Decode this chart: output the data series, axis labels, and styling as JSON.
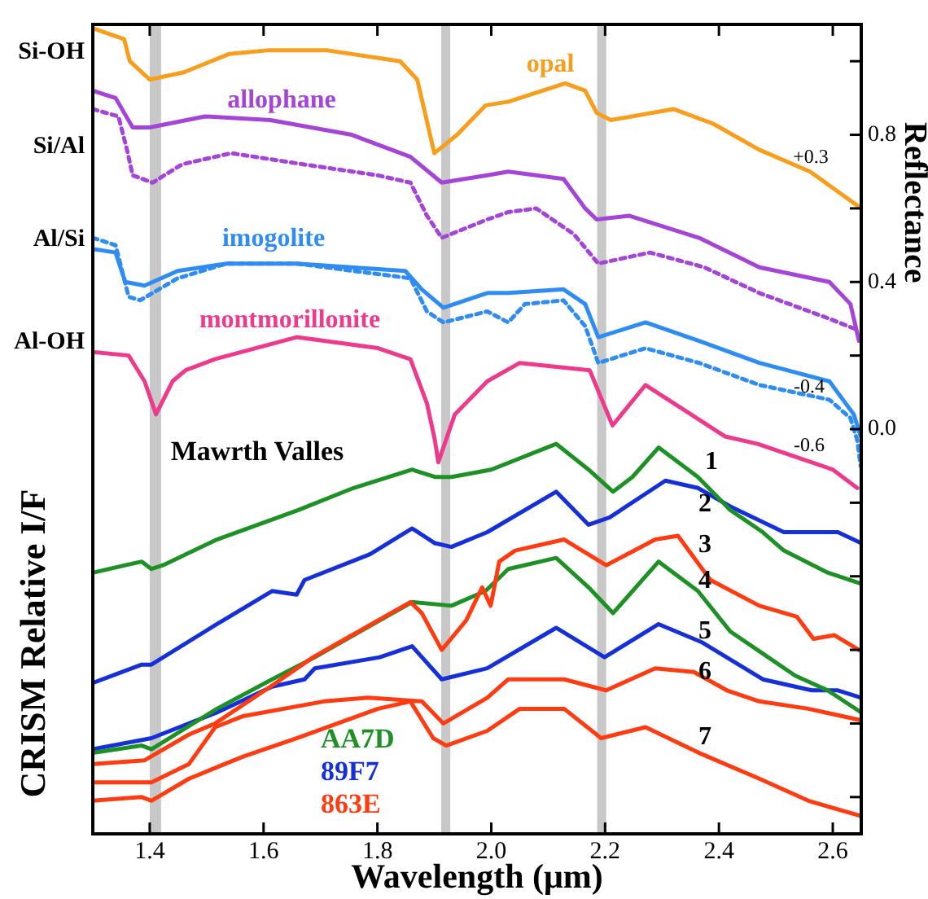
{
  "chart_data": {
    "type": "line",
    "xlabel": "Wavelength (μm)",
    "ylabel": "Reflectance",
    "xlim": [
      1.3,
      2.65
    ],
    "xticks": [
      1.4,
      1.6,
      1.8,
      {
        "value": 2,
        "label": "2.0"
      },
      2.2,
      2.4,
      2.6
    ],
    "ylim": [
      -1.1,
      1.1
    ],
    "yticks": [
      {
        "value": -1,
        "label": null
      },
      {
        "value": -0.8,
        "label": null
      },
      {
        "value": -0.6,
        "label": null
      },
      {
        "value": -0.4,
        "label": null
      },
      {
        "value": -0.2,
        "label": null
      },
      {
        "value": 0,
        "label": "0.0"
      },
      {
        "value": 0.2,
        "label": null
      },
      0.4,
      {
        "value": 0.6,
        "label": null
      },
      0.8,
      {
        "value": 1,
        "label": null
      }
    ],
    "legend": "bottom left",
    "bands": [
      {
        "axis": "x",
        "from": 1.4,
        "to": 1.42,
        "color": "#c8c8c8"
      },
      {
        "axis": "x",
        "from": 1.912,
        "to": 1.928,
        "color": "#c8c8c8"
      },
      {
        "axis": "x",
        "from": 2.186,
        "to": 2.202,
        "color": "#c8c8c8"
      }
    ],
    "series": [
      {
        "name": "opal",
        "color": "#f99d1c",
        "x": [
          1.3,
          1.355,
          1.365,
          1.4,
          1.46,
          1.54,
          1.61,
          1.71,
          1.84,
          1.87,
          1.9,
          1.94,
          1.99,
          2.03,
          2.13,
          2.165,
          2.185,
          2.21,
          2.32,
          2.39,
          2.47,
          2.56,
          2.65
        ],
        "values": [
          1.09,
          1.06,
          1.0,
          0.95,
          0.97,
          1.02,
          1.03,
          1.03,
          1.0,
          0.95,
          0.75,
          0.8,
          0.88,
          0.89,
          0.94,
          0.92,
          0.86,
          0.84,
          0.87,
          0.83,
          0.76,
          0.7,
          0.6
        ]
      },
      {
        "name": "allophane",
        "color": "#a545d8",
        "x": [
          1.3,
          1.34,
          1.37,
          1.4,
          1.497,
          1.612,
          1.755,
          1.858,
          1.913,
          1.993,
          2.03,
          2.127,
          2.165,
          2.185,
          2.242,
          2.365,
          2.471,
          2.594,
          2.631,
          2.646
        ],
        "values": [
          0.92,
          0.9,
          0.82,
          0.82,
          0.85,
          0.84,
          0.8,
          0.74,
          0.67,
          0.69,
          0.7,
          0.68,
          0.6,
          0.57,
          0.58,
          0.52,
          0.44,
          0.4,
          0.34,
          0.24
        ]
      },
      {
        "color": "#a545d8",
        "line_style": "dotted",
        "x": [
          1.3,
          1.345,
          1.36,
          1.37,
          1.405,
          1.457,
          1.543,
          1.669,
          1.8,
          1.858,
          1.887,
          1.913,
          1.993,
          2.03,
          2.079,
          2.145,
          2.188,
          2.279,
          2.374,
          2.471,
          2.594,
          2.643
        ],
        "values": [
          0.87,
          0.85,
          0.76,
          0.69,
          0.67,
          0.72,
          0.75,
          0.72,
          0.69,
          0.67,
          0.58,
          0.52,
          0.57,
          0.59,
          0.6,
          0.53,
          0.45,
          0.48,
          0.44,
          0.37,
          0.3,
          0.27
        ]
      },
      {
        "name": "imogolite",
        "color": "#2f8cf2",
        "x": [
          1.3,
          1.34,
          1.357,
          1.391,
          1.449,
          1.535,
          1.658,
          1.849,
          1.878,
          1.916,
          1.993,
          2.03,
          2.127,
          2.165,
          2.188,
          2.271,
          2.365,
          2.471,
          2.594,
          2.637,
          2.649
        ],
        "values": [
          0.49,
          0.48,
          0.4,
          0.39,
          0.43,
          0.45,
          0.45,
          0.43,
          0.38,
          0.33,
          0.37,
          0.37,
          0.38,
          0.34,
          0.25,
          0.29,
          0.24,
          0.18,
          0.13,
          0.04,
          -0.02
        ]
      },
      {
        "color": "#2f8cf2",
        "line_style": "dotted",
        "x": [
          1.3,
          1.34,
          1.363,
          1.383,
          1.449,
          1.535,
          1.658,
          1.858,
          1.887,
          1.916,
          1.993,
          2.03,
          2.059,
          2.127,
          2.165,
          2.188,
          2.271,
          2.365,
          2.471,
          2.594,
          2.631,
          2.643,
          2.649
        ],
        "values": [
          0.52,
          0.5,
          0.36,
          0.35,
          0.41,
          0.45,
          0.45,
          0.41,
          0.32,
          0.29,
          0.32,
          0.29,
          0.34,
          0.35,
          0.28,
          0.18,
          0.22,
          0.18,
          0.12,
          0.08,
          0.03,
          -0.03,
          -0.1
        ]
      },
      {
        "name": "montmorillonite",
        "color": "#ee3a8c",
        "x": [
          1.3,
          1.363,
          1.391,
          1.411,
          1.44,
          1.463,
          1.514,
          1.658,
          1.801,
          1.858,
          1.887,
          1.901,
          1.907,
          1.936,
          1.993,
          2.05,
          2.173,
          2.213,
          2.271,
          2.411,
          2.468,
          2.6,
          2.643
        ],
        "values": [
          0.21,
          0.2,
          0.13,
          0.04,
          0.13,
          0.16,
          0.19,
          0.25,
          0.22,
          0.19,
          0.07,
          -0.03,
          -0.09,
          0.04,
          0.13,
          0.18,
          0.16,
          0.01,
          0.12,
          -0.02,
          -0.04,
          -0.11,
          -0.16
        ]
      },
      {
        "name": "AA7D",
        "color": "#1e9126",
        "x": [
          1.3,
          1.357,
          1.386,
          1.403,
          1.423,
          1.518,
          1.661,
          1.758,
          1.861,
          1.901,
          1.93,
          2.0,
          2.114,
          2.171,
          2.214,
          2.248,
          2.294,
          2.363,
          2.42,
          2.477,
          2.514,
          2.591,
          2.65
        ],
        "values": [
          -0.39,
          -0.37,
          -0.36,
          -0.38,
          -0.37,
          -0.3,
          -0.22,
          -0.16,
          -0.11,
          -0.13,
          -0.13,
          -0.11,
          -0.04,
          -0.11,
          -0.17,
          -0.13,
          -0.05,
          -0.13,
          -0.22,
          -0.28,
          -0.33,
          -0.39,
          -0.42
        ]
      },
      {
        "name": "89F7",
        "color": "#1530d8",
        "x": [
          1.3,
          1.386,
          1.403,
          1.518,
          1.615,
          1.658,
          1.672,
          1.787,
          1.861,
          1.901,
          1.93,
          1.993,
          2.114,
          2.171,
          2.208,
          2.306,
          2.363,
          2.42,
          2.514,
          2.609,
          2.65
        ],
        "values": [
          -0.69,
          -0.64,
          -0.64,
          -0.53,
          -0.44,
          -0.45,
          -0.41,
          -0.34,
          -0.27,
          -0.31,
          -0.32,
          -0.28,
          -0.17,
          -0.26,
          -0.24,
          -0.14,
          -0.16,
          -0.21,
          -0.28,
          -0.28,
          -0.31
        ]
      },
      {
        "name": "863E",
        "color": "#ff3b12",
        "x": [
          1.3,
          1.391,
          1.469,
          1.515,
          1.612,
          1.687,
          1.744,
          1.858,
          1.878,
          1.913,
          1.956,
          1.984,
          1.999,
          2.014,
          2.042,
          2.128,
          2.202,
          2.288,
          2.328,
          2.385,
          2.471,
          2.537,
          2.566,
          2.603,
          2.646
        ],
        "values": [
          -0.91,
          -0.9,
          -0.83,
          -0.8,
          -0.7,
          -0.62,
          -0.57,
          -0.47,
          -0.5,
          -0.6,
          -0.52,
          -0.43,
          -0.48,
          -0.36,
          -0.33,
          -0.3,
          -0.37,
          -0.3,
          -0.29,
          -0.41,
          -0.48,
          -0.51,
          -0.57,
          -0.56,
          -0.6
        ]
      },
      {
        "color": "#1e9126",
        "x": [
          1.3,
          1.386,
          1.403,
          1.518,
          1.615,
          1.69,
          1.804,
          1.861,
          1.93,
          1.99,
          2.03,
          2.114,
          2.171,
          2.214,
          2.294,
          2.363,
          2.42,
          2.477,
          2.534,
          2.591,
          2.65
        ],
        "values": [
          -0.88,
          -0.86,
          -0.87,
          -0.76,
          -0.68,
          -0.62,
          -0.52,
          -0.47,
          -0.48,
          -0.44,
          -0.38,
          -0.35,
          -0.43,
          -0.5,
          -0.36,
          -0.44,
          -0.55,
          -0.61,
          -0.67,
          -0.71,
          -0.77
        ]
      },
      {
        "color": "#1530d8",
        "x": [
          1.3,
          1.403,
          1.518,
          1.615,
          1.672,
          1.69,
          1.804,
          1.861,
          1.913,
          1.993,
          2.114,
          2.199,
          2.294,
          2.371,
          2.477,
          2.563,
          2.609,
          2.65
        ],
        "values": [
          -0.87,
          -0.84,
          -0.77,
          -0.7,
          -0.68,
          -0.65,
          -0.62,
          -0.59,
          -0.68,
          -0.65,
          -0.54,
          -0.62,
          -0.53,
          -0.58,
          -0.68,
          -0.71,
          -0.71,
          -0.73
        ]
      },
      {
        "color": "#ff3b12",
        "x": [
          1.3,
          1.403,
          1.469,
          1.515,
          1.564,
          1.706,
          1.784,
          1.878,
          1.916,
          1.993,
          2.03,
          2.128,
          2.202,
          2.288,
          2.356,
          2.414,
          2.471,
          2.557,
          2.646
        ],
        "values": [
          -0.96,
          -0.96,
          -0.91,
          -0.81,
          -0.78,
          -0.74,
          -0.73,
          -0.74,
          -0.8,
          -0.73,
          -0.68,
          -0.68,
          -0.71,
          -0.65,
          -0.66,
          -0.71,
          -0.74,
          -0.76,
          -0.79
        ]
      },
      {
        "color": "#ff3b12",
        "x": [
          1.3,
          1.386,
          1.403,
          1.469,
          1.564,
          1.658,
          1.801,
          1.858,
          1.898,
          1.921,
          1.993,
          2.05,
          2.128,
          2.193,
          2.271,
          2.365,
          2.471,
          2.557,
          2.646
        ],
        "values": [
          -1.01,
          -1.0,
          -1.01,
          -0.95,
          -0.89,
          -0.84,
          -0.76,
          -0.74,
          -0.84,
          -0.86,
          -0.82,
          -0.76,
          -0.76,
          -0.84,
          -0.81,
          -0.88,
          -0.95,
          -1.01,
          -1.05
        ]
      }
    ],
    "annotations": [
      "CRISM Relative I/F",
      "Si-OH",
      "Si/Al",
      "Al/Si",
      "Al-OH",
      "+0.3",
      "-0.4",
      "-0.6",
      "Mawrth Valles",
      "1",
      "2",
      "3",
      "4",
      "5",
      "6",
      "7"
    ]
  }
}
